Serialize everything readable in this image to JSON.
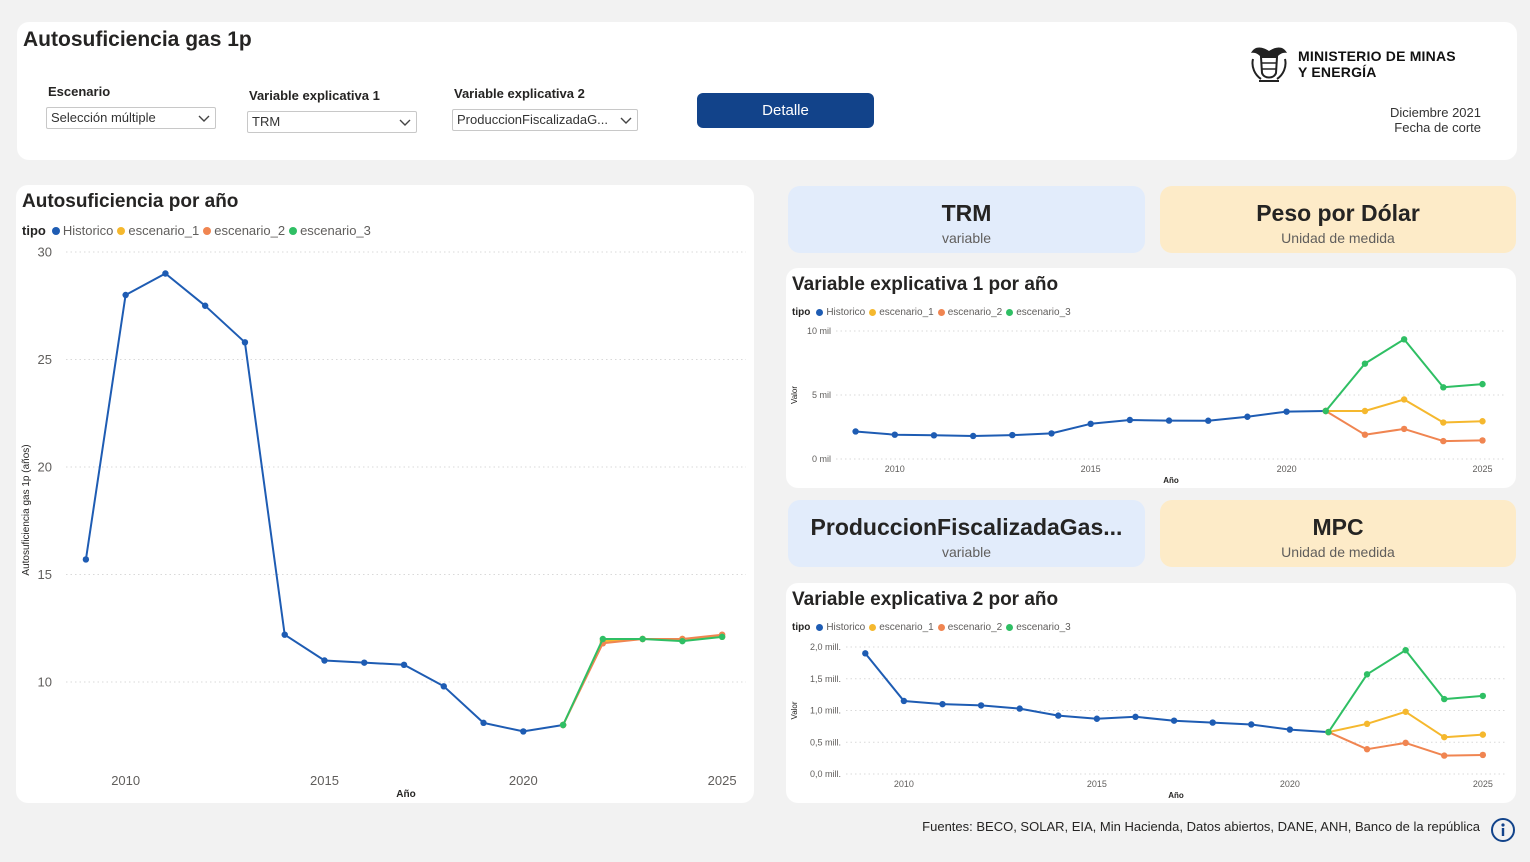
{
  "header": {
    "title": "Autosuficiencia gas 1p",
    "filters": [
      {
        "label": "Escenario",
        "value": "Selección múltiple"
      },
      {
        "label": "Variable explicativa 1",
        "value": "TRM"
      },
      {
        "label": "Variable explicativa 2",
        "value": "ProduccionFiscalizadaG..."
      }
    ],
    "detail_button": "Detalle",
    "ministry_line1": "MINISTERIO DE MINAS",
    "ministry_line2": "Y ENERGÍA",
    "cutoff_date": "Diciembre 2021",
    "cutoff_label": "Fecha de corte"
  },
  "kpis": [
    {
      "value": "TRM",
      "label": "variable"
    },
    {
      "value": "Peso por Dólar",
      "label": "Unidad de medida"
    },
    {
      "value": "ProduccionFiscalizadaGas...",
      "label": "variable"
    },
    {
      "value": "MPC",
      "label": "Unidad de medida"
    }
  ],
  "footer": {
    "sources": "Fuentes: BECO, SOLAR, EIA, Min Hacienda, Datos abiertos, DANE, ANH, Banco de la república"
  },
  "colors": {
    "Historico": "#1e5cb3",
    "escenario_1": "#f5b82e",
    "escenario_2": "#f08551",
    "escenario_3": "#2fbf64",
    "button": "#12438a"
  },
  "chart_data": [
    {
      "type": "line",
      "title": "Autosuficiencia por año",
      "legend_title": "tipo",
      "xlabel": "Año",
      "ylabel": "Autosuficiencia gas 1p (años)",
      "xlim": [
        2008.5,
        2025.6
      ],
      "ylim": [
        6,
        30
      ],
      "xticks": [
        2010,
        2015,
        2020,
        2025
      ],
      "xtick_labels": [
        "2010",
        "2015",
        "2020",
        "2025"
      ],
      "yticks": [
        10,
        15,
        20,
        25,
        30
      ],
      "ytick_labels": [
        "10",
        "15",
        "20",
        "25",
        "30"
      ],
      "grid": true,
      "legend_position": "top-left",
      "series": [
        {
          "name": "Historico",
          "x": [
            2009,
            2010,
            2011,
            2012,
            2013,
            2014,
            2015,
            2016,
            2017,
            2018,
            2019,
            2020,
            2021
          ],
          "values": [
            15.7,
            28.0,
            29.0,
            27.5,
            25.8,
            12.2,
            11.0,
            10.9,
            10.8,
            9.8,
            8.1,
            7.7,
            8.0
          ]
        },
        {
          "name": "escenario_1",
          "x": [
            2021,
            2022,
            2023,
            2024,
            2025
          ],
          "values": [
            8.0,
            11.9,
            12.0,
            12.0,
            12.1
          ]
        },
        {
          "name": "escenario_2",
          "x": [
            2021,
            2022,
            2023,
            2024,
            2025
          ],
          "values": [
            8.0,
            11.8,
            12.0,
            12.0,
            12.2
          ]
        },
        {
          "name": "escenario_3",
          "x": [
            2021,
            2022,
            2023,
            2024,
            2025
          ],
          "values": [
            8.0,
            12.0,
            12.0,
            11.9,
            12.1
          ]
        }
      ]
    },
    {
      "type": "line",
      "title": "Variable explicativa 1 por año",
      "legend_title": "tipo",
      "xlabel": "Año",
      "ylabel": "Valor",
      "xlim": [
        2008.5,
        2025.6
      ],
      "ylim": [
        0,
        10000
      ],
      "xticks": [
        2010,
        2015,
        2020,
        2025
      ],
      "xtick_labels": [
        "2010",
        "2015",
        "2020",
        "2025"
      ],
      "yticks": [
        0,
        5000,
        10000
      ],
      "ytick_labels": [
        "0 mil",
        "5 mil",
        "10 mil"
      ],
      "grid": true,
      "legend_position": "top-left",
      "series": [
        {
          "name": "Historico",
          "x": [
            2009,
            2010,
            2011,
            2012,
            2013,
            2014,
            2015,
            2016,
            2017,
            2018,
            2019,
            2020,
            2021
          ],
          "values": [
            2150,
            1900,
            1850,
            1800,
            1870,
            2000,
            2750,
            3050,
            3000,
            2990,
            3300,
            3700,
            3750
          ]
        },
        {
          "name": "escenario_1",
          "x": [
            2021,
            2022,
            2023,
            2024,
            2025
          ],
          "values": [
            3750,
            3750,
            4650,
            2850,
            2950
          ]
        },
        {
          "name": "escenario_2",
          "x": [
            2021,
            2022,
            2023,
            2024,
            2025
          ],
          "values": [
            3750,
            1900,
            2350,
            1400,
            1450
          ]
        },
        {
          "name": "escenario_3",
          "x": [
            2021,
            2022,
            2023,
            2024,
            2025
          ],
          "values": [
            3750,
            7450,
            9350,
            5600,
            5850
          ]
        }
      ]
    },
    {
      "type": "line",
      "title": "Variable explicativa 2 por año",
      "legend_title": "tipo",
      "xlabel": "Año",
      "ylabel": "Valor",
      "xlim": [
        2008.5,
        2025.6
      ],
      "ylim": [
        0,
        2000000
      ],
      "xticks": [
        2010,
        2015,
        2020,
        2025
      ],
      "xtick_labels": [
        "2010",
        "2015",
        "2020",
        "2025"
      ],
      "yticks": [
        0,
        500000,
        1000000,
        1500000,
        2000000
      ],
      "ytick_labels": [
        "0,0 mill.",
        "0,5 mill.",
        "1,0 mill.",
        "1,5 mill.",
        "2,0 mill."
      ],
      "grid": true,
      "legend_position": "top-left",
      "series": [
        {
          "name": "Historico",
          "x": [
            2009,
            2010,
            2011,
            2012,
            2013,
            2014,
            2015,
            2016,
            2017,
            2018,
            2019,
            2020,
            2021
          ],
          "values": [
            1900000,
            1150000,
            1100000,
            1080000,
            1030000,
            920000,
            870000,
            900000,
            840000,
            810000,
            780000,
            700000,
            660000
          ]
        },
        {
          "name": "escenario_1",
          "x": [
            2021,
            2022,
            2023,
            2024,
            2025
          ],
          "values": [
            660000,
            790000,
            980000,
            580000,
            620000
          ]
        },
        {
          "name": "escenario_2",
          "x": [
            2021,
            2022,
            2023,
            2024,
            2025
          ],
          "values": [
            660000,
            390000,
            490000,
            290000,
            300000
          ]
        },
        {
          "name": "escenario_3",
          "x": [
            2021,
            2022,
            2023,
            2024,
            2025
          ],
          "values": [
            660000,
            1570000,
            1950000,
            1180000,
            1230000
          ]
        }
      ]
    }
  ]
}
